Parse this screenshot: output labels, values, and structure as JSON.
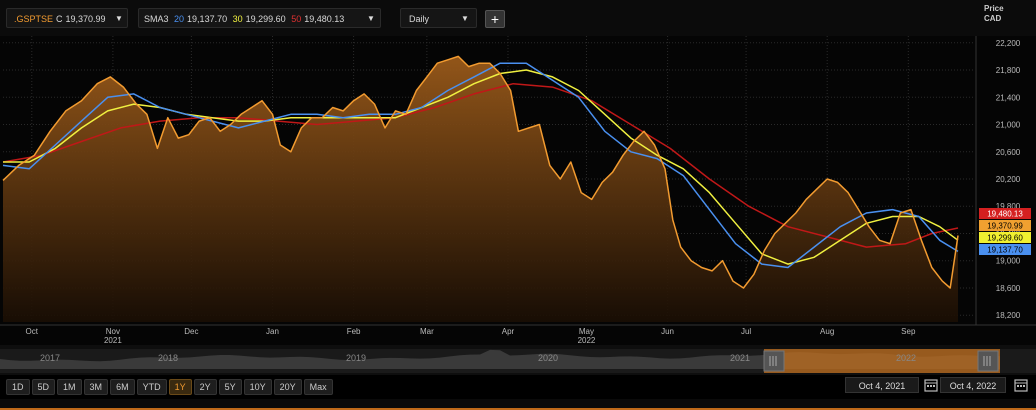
{
  "toolbar": {
    "instrument": {
      "ticker": ".GSPTSE",
      "close_label": "C",
      "close_value": "19,370.99",
      "color": "#f29b30"
    },
    "sma": {
      "label": "SMA3",
      "periods": [
        {
          "period": "20",
          "value": "19,137.70",
          "color": "#4a90f0"
        },
        {
          "period": "30",
          "value": "19,299.60",
          "color": "#f0f040"
        },
        {
          "period": "50",
          "value": "19,480.13",
          "color": "#e03030"
        }
      ]
    },
    "interval": "Daily",
    "add_label": "+"
  },
  "price_header": {
    "line1": "Price",
    "line2": "CAD"
  },
  "navigator": {
    "years": [
      "2017",
      "2018",
      "2019",
      "2020",
      "2021",
      "2022"
    ]
  },
  "range_buttons": [
    "1D",
    "5D",
    "1M",
    "3M",
    "6M",
    "YTD",
    "1Y",
    "2Y",
    "5Y",
    "10Y",
    "20Y",
    "Max"
  ],
  "active_range": "1Y",
  "date_from": "Oct 4, 2021",
  "date_to": "Oct 4, 2022",
  "chart_data": {
    "type": "line",
    "x_labels": [
      {
        "label": "Oct",
        "day": 11
      },
      {
        "label": "Nov",
        "day": 42,
        "year": "2021"
      },
      {
        "label": "Dec",
        "day": 72
      },
      {
        "label": "Jan",
        "day": 103
      },
      {
        "label": "Feb",
        "day": 134
      },
      {
        "label": "Mar",
        "day": 162
      },
      {
        "label": "Apr",
        "day": 193
      },
      {
        "label": "May",
        "day": 223,
        "year": "2022"
      },
      {
        "label": "Jun",
        "day": 254
      },
      {
        "label": "Jul",
        "day": 284
      },
      {
        "label": "Aug",
        "day": 315
      },
      {
        "label": "Sep",
        "day": 346
      }
    ],
    "x_range": [
      0,
      365
    ],
    "y_ticks": [
      18200,
      18600,
      19000,
      19400,
      19800,
      20200,
      20600,
      21000,
      21400,
      21800,
      22200
    ],
    "ylim": [
      18100,
      22300
    ],
    "grid": true,
    "series": [
      {
        "name": ".GSPTSE",
        "color": "#f29b30",
        "area": true,
        "points": [
          [
            0,
            20180
          ],
          [
            6,
            20400
          ],
          [
            12,
            20550
          ],
          [
            18,
            20900
          ],
          [
            24,
            21200
          ],
          [
            30,
            21350
          ],
          [
            36,
            21600
          ],
          [
            41,
            21700
          ],
          [
            46,
            21550
          ],
          [
            51,
            21300
          ],
          [
            55,
            21150
          ],
          [
            59,
            20650
          ],
          [
            63,
            21100
          ],
          [
            67,
            20800
          ],
          [
            71,
            20850
          ],
          [
            75,
            21050
          ],
          [
            79,
            21100
          ],
          [
            83,
            20900
          ],
          [
            87,
            21000
          ],
          [
            91,
            21150
          ],
          [
            95,
            21250
          ],
          [
            99,
            21350
          ],
          [
            103,
            21150
          ],
          [
            106,
            20700
          ],
          [
            110,
            20600
          ],
          [
            114,
            20950
          ],
          [
            118,
            21100
          ],
          [
            122,
            21100
          ],
          [
            126,
            21250
          ],
          [
            130,
            21200
          ],
          [
            134,
            21350
          ],
          [
            138,
            21450
          ],
          [
            142,
            21300
          ],
          [
            146,
            20950
          ],
          [
            150,
            21200
          ],
          [
            154,
            21150
          ],
          [
            158,
            21500
          ],
          [
            162,
            21700
          ],
          [
            166,
            21900
          ],
          [
            170,
            21950
          ],
          [
            174,
            22000
          ],
          [
            178,
            21850
          ],
          [
            182,
            21900
          ],
          [
            186,
            21900
          ],
          [
            190,
            21750
          ],
          [
            194,
            21500
          ],
          [
            197,
            20900
          ],
          [
            201,
            20950
          ],
          [
            205,
            21000
          ],
          [
            209,
            20400
          ],
          [
            213,
            20200
          ],
          [
            217,
            20450
          ],
          [
            221,
            20000
          ],
          [
            225,
            19900
          ],
          [
            229,
            20150
          ],
          [
            233,
            20300
          ],
          [
            237,
            20550
          ],
          [
            241,
            20750
          ],
          [
            245,
            20900
          ],
          [
            249,
            20700
          ],
          [
            253,
            20350
          ],
          [
            256,
            19600
          ],
          [
            259,
            19200
          ],
          [
            263,
            19000
          ],
          [
            267,
            18900
          ],
          [
            271,
            18850
          ],
          [
            275,
            19000
          ],
          [
            279,
            18700
          ],
          [
            283,
            18600
          ],
          [
            287,
            18800
          ],
          [
            291,
            19150
          ],
          [
            295,
            19400
          ],
          [
            299,
            19550
          ],
          [
            303,
            19700
          ],
          [
            307,
            19900
          ],
          [
            311,
            20050
          ],
          [
            315,
            20200
          ],
          [
            319,
            20150
          ],
          [
            323,
            20000
          ],
          [
            327,
            19750
          ],
          [
            331,
            19500
          ],
          [
            335,
            19300
          ],
          [
            339,
            19250
          ],
          [
            343,
            19700
          ],
          [
            347,
            19750
          ],
          [
            351,
            19300
          ],
          [
            355,
            18900
          ],
          [
            359,
            18700
          ],
          [
            362,
            18600
          ],
          [
            365,
            19370
          ]
        ]
      },
      {
        "name": "SMA 20",
        "color": "#4a90f0",
        "points": [
          [
            0,
            20400
          ],
          [
            10,
            20350
          ],
          [
            20,
            20700
          ],
          [
            30,
            21050
          ],
          [
            40,
            21400
          ],
          [
            50,
            21450
          ],
          [
            60,
            21250
          ],
          [
            70,
            21150
          ],
          [
            80,
            21050
          ],
          [
            90,
            20950
          ],
          [
            100,
            21050
          ],
          [
            110,
            21150
          ],
          [
            120,
            21150
          ],
          [
            130,
            21100
          ],
          [
            140,
            21150
          ],
          [
            150,
            21150
          ],
          [
            160,
            21250
          ],
          [
            170,
            21500
          ],
          [
            180,
            21700
          ],
          [
            190,
            21900
          ],
          [
            200,
            21900
          ],
          [
            210,
            21650
          ],
          [
            220,
            21400
          ],
          [
            230,
            20900
          ],
          [
            240,
            20600
          ],
          [
            250,
            20500
          ],
          [
            260,
            20250
          ],
          [
            270,
            19750
          ],
          [
            280,
            19250
          ],
          [
            290,
            18950
          ],
          [
            300,
            18900
          ],
          [
            310,
            19200
          ],
          [
            320,
            19500
          ],
          [
            330,
            19700
          ],
          [
            340,
            19750
          ],
          [
            350,
            19650
          ],
          [
            358,
            19300
          ],
          [
            365,
            19137
          ]
        ]
      },
      {
        "name": "SMA 30",
        "color": "#f0f040",
        "points": [
          [
            0,
            20450
          ],
          [
            10,
            20450
          ],
          [
            20,
            20650
          ],
          [
            30,
            20950
          ],
          [
            40,
            21200
          ],
          [
            50,
            21300
          ],
          [
            60,
            21250
          ],
          [
            70,
            21150
          ],
          [
            80,
            21100
          ],
          [
            90,
            21050
          ],
          [
            100,
            21050
          ],
          [
            110,
            21100
          ],
          [
            120,
            21100
          ],
          [
            130,
            21100
          ],
          [
            140,
            21100
          ],
          [
            150,
            21100
          ],
          [
            160,
            21250
          ],
          [
            170,
            21400
          ],
          [
            180,
            21600
          ],
          [
            190,
            21750
          ],
          [
            200,
            21800
          ],
          [
            210,
            21700
          ],
          [
            220,
            21500
          ],
          [
            230,
            21150
          ],
          [
            240,
            20800
          ],
          [
            250,
            20550
          ],
          [
            260,
            20350
          ],
          [
            270,
            20000
          ],
          [
            280,
            19550
          ],
          [
            290,
            19100
          ],
          [
            300,
            18950
          ],
          [
            310,
            19050
          ],
          [
            320,
            19300
          ],
          [
            330,
            19550
          ],
          [
            340,
            19650
          ],
          [
            350,
            19650
          ],
          [
            358,
            19500
          ],
          [
            365,
            19300
          ]
        ]
      },
      {
        "name": "SMA 50",
        "color": "#c01818",
        "points": [
          [
            0,
            20450
          ],
          [
            15,
            20550
          ],
          [
            30,
            20750
          ],
          [
            45,
            20950
          ],
          [
            60,
            21050
          ],
          [
            75,
            21100
          ],
          [
            90,
            21100
          ],
          [
            105,
            21050
          ],
          [
            120,
            21000
          ],
          [
            135,
            21050
          ],
          [
            150,
            21100
          ],
          [
            165,
            21250
          ],
          [
            180,
            21450
          ],
          [
            195,
            21600
          ],
          [
            210,
            21550
          ],
          [
            225,
            21350
          ],
          [
            240,
            21000
          ],
          [
            255,
            20650
          ],
          [
            270,
            20200
          ],
          [
            285,
            19800
          ],
          [
            300,
            19500
          ],
          [
            315,
            19350
          ],
          [
            330,
            19200
          ],
          [
            345,
            19250
          ],
          [
            355,
            19400
          ],
          [
            365,
            19480
          ]
        ]
      }
    ],
    "last_value_tags": [
      {
        "value": "19,480.13",
        "bg": "#d42020",
        "fg": "#ffffff"
      },
      {
        "value": "19,370.99",
        "bg": "#f0a030",
        "fg": "#000000"
      },
      {
        "value": "19,299.60",
        "bg": "#f0f030",
        "fg": "#000000"
      },
      {
        "value": "19,137.70",
        "bg": "#4a90f0",
        "fg": "#000000"
      }
    ]
  }
}
